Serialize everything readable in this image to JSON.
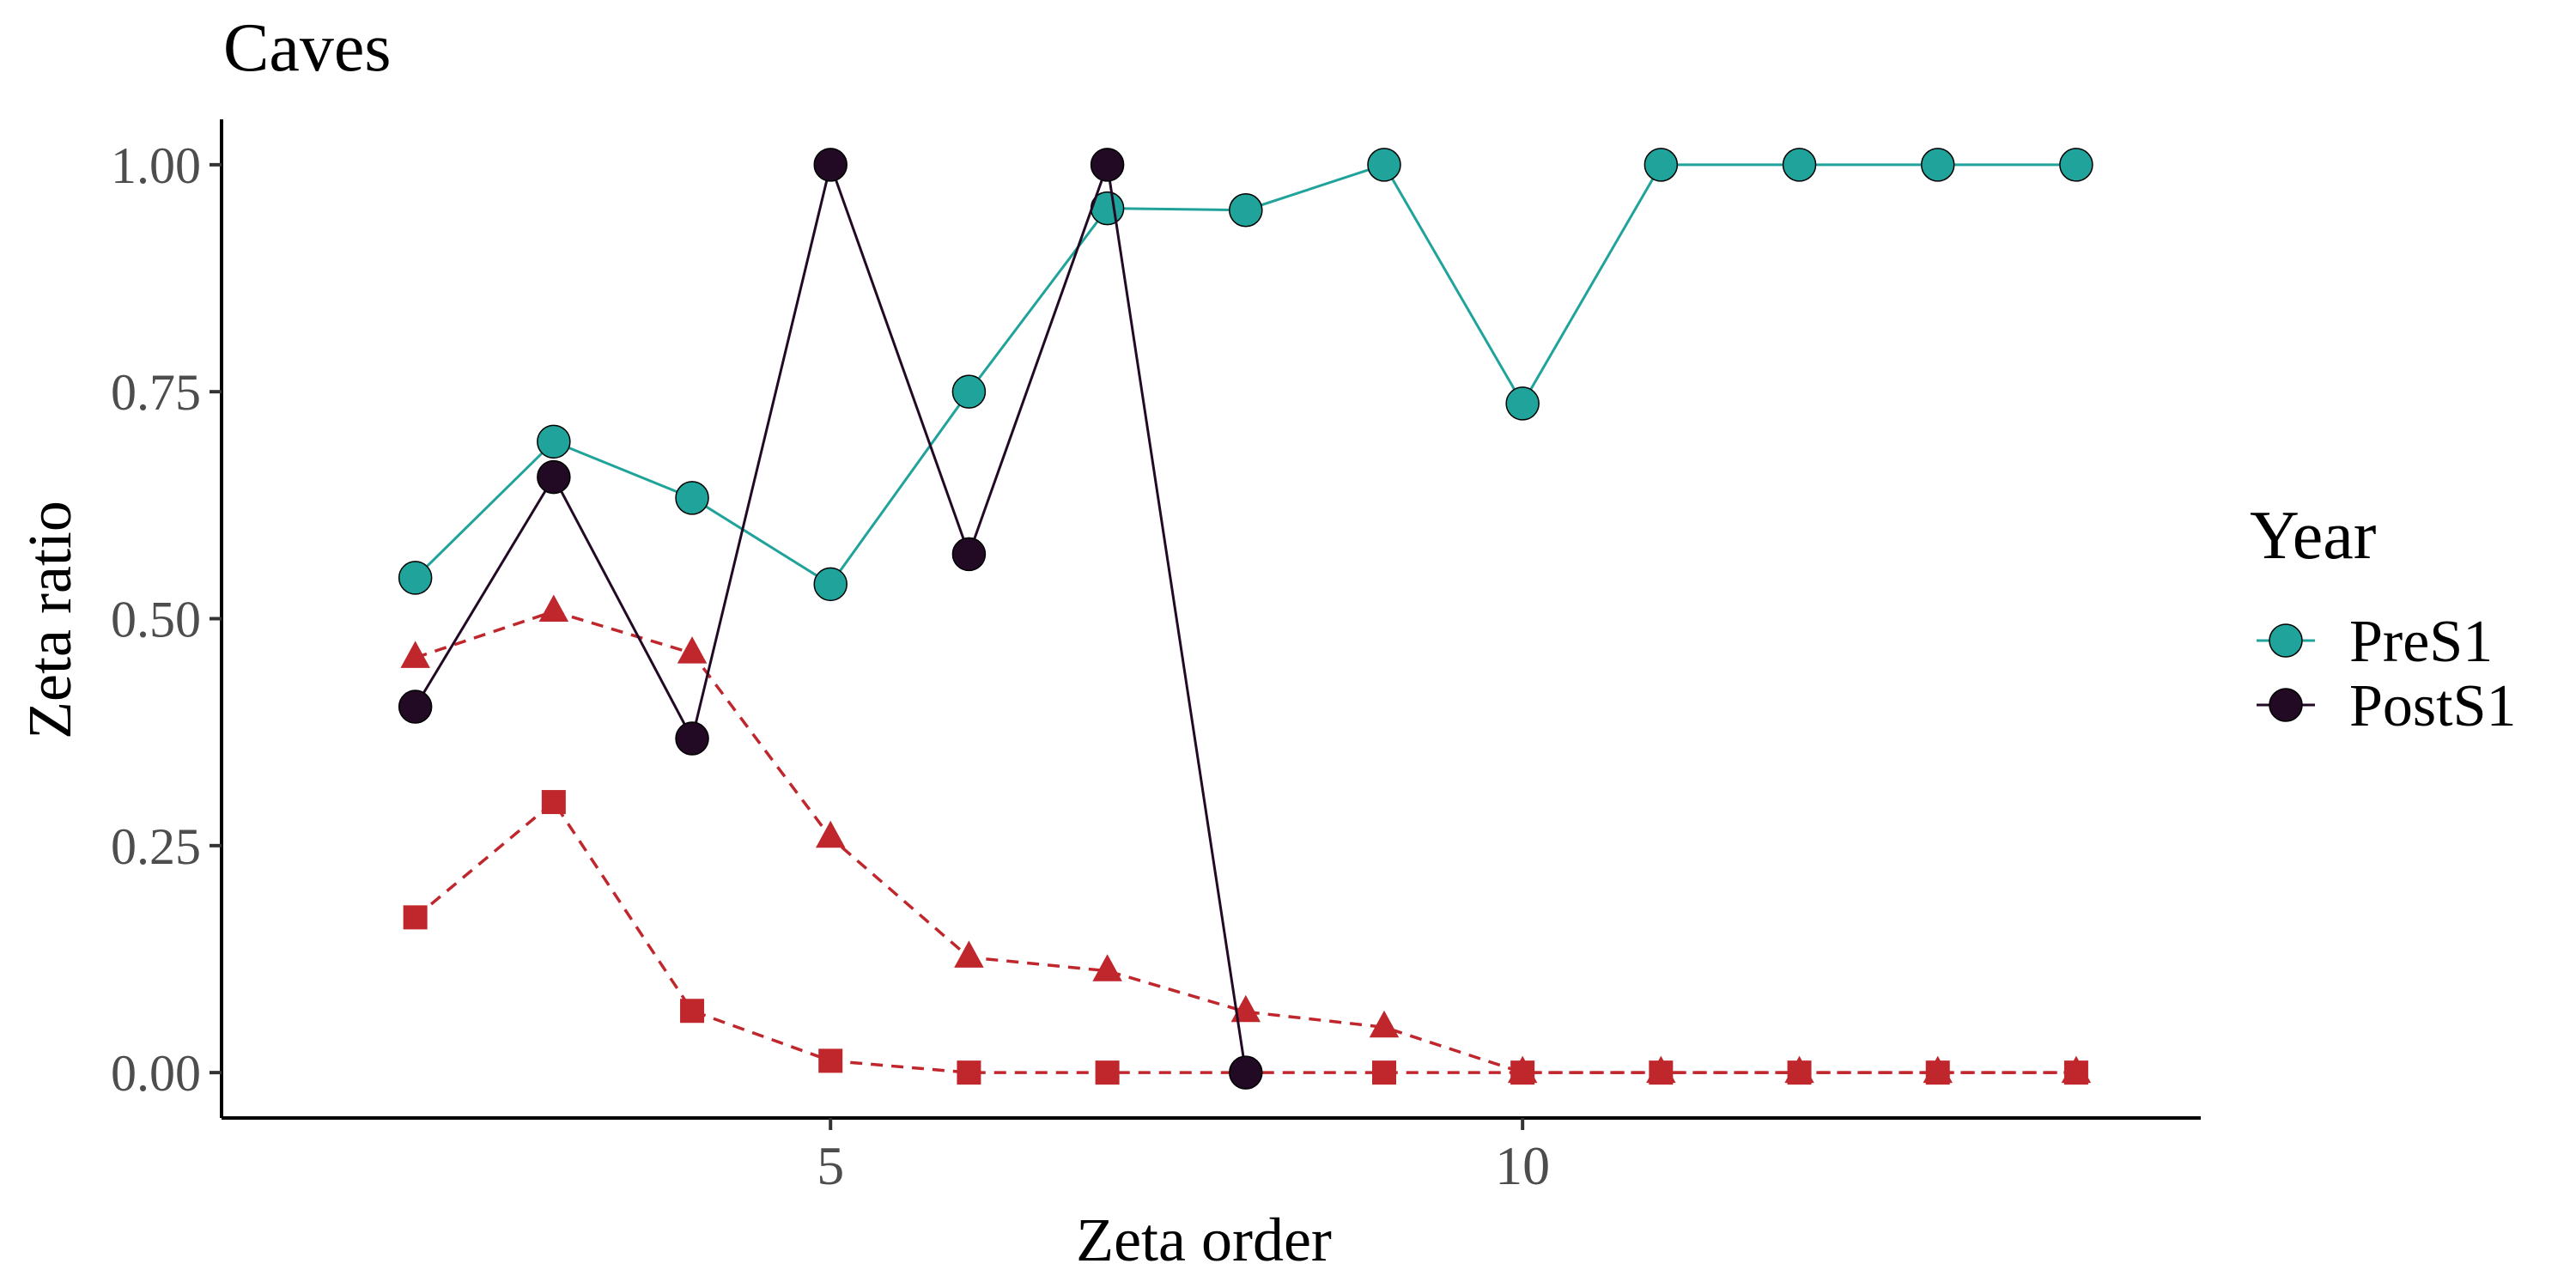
{
  "chart_data": {
    "type": "line",
    "title": "Caves",
    "xlabel": "Zeta order",
    "ylabel": "Zeta ratio",
    "xlim": [
      0.6,
      14.9
    ],
    "ylim": [
      -0.05,
      1.05
    ],
    "x_ticks": [
      5,
      10
    ],
    "x_tick_labels": [
      "5",
      "10"
    ],
    "y_ticks": [
      0,
      0.25,
      0.5,
      0.75,
      1.0
    ],
    "y_tick_labels": [
      "0.00",
      "0.25",
      "0.50",
      "0.75",
      "1.00"
    ],
    "grid": false,
    "legend": {
      "title": "Year",
      "placement": "right",
      "entries": [
        "PreS1",
        "PostS1"
      ]
    },
    "series": [
      {
        "name": "PreS1",
        "color": "#1fa39a",
        "line": "solid",
        "marker": "circle",
        "x": [
          2,
          3,
          4,
          5,
          6,
          7,
          8,
          9,
          10,
          11,
          12,
          13,
          14
        ],
        "y": [
          0.545,
          0.695,
          0.633,
          0.538,
          0.75,
          0.952,
          0.95,
          1.0,
          0.737,
          1.0,
          1.0,
          1.0,
          1.0
        ]
      },
      {
        "name": "PostS1",
        "color": "#220a24",
        "line": "solid",
        "marker": "circle",
        "x": [
          2,
          3,
          4,
          5,
          6,
          7,
          8
        ],
        "y": [
          0.403,
          0.656,
          0.368,
          1.0,
          0.571,
          1.0,
          0.0
        ]
      },
      {
        "color": "#c0272d",
        "line": "dashed",
        "marker": "triangle",
        "x": [
          2,
          3,
          4,
          5,
          6,
          7,
          8,
          9,
          10,
          11,
          12,
          13,
          14
        ],
        "y": [
          0.457,
          0.508,
          0.462,
          0.259,
          0.127,
          0.112,
          0.067,
          0.05,
          0.0,
          0.0,
          0.0,
          0.0,
          0.0
        ]
      },
      {
        "color": "#c0272d",
        "line": "dashed",
        "marker": "square",
        "x": [
          2,
          3,
          4,
          5,
          6,
          7,
          8,
          9,
          10,
          11,
          12,
          13,
          14
        ],
        "y": [
          0.171,
          0.298,
          0.068,
          0.013,
          0.0,
          0.0,
          0.0,
          0.0,
          0.0,
          0.0,
          0.0,
          0.0,
          0.0
        ]
      }
    ]
  }
}
